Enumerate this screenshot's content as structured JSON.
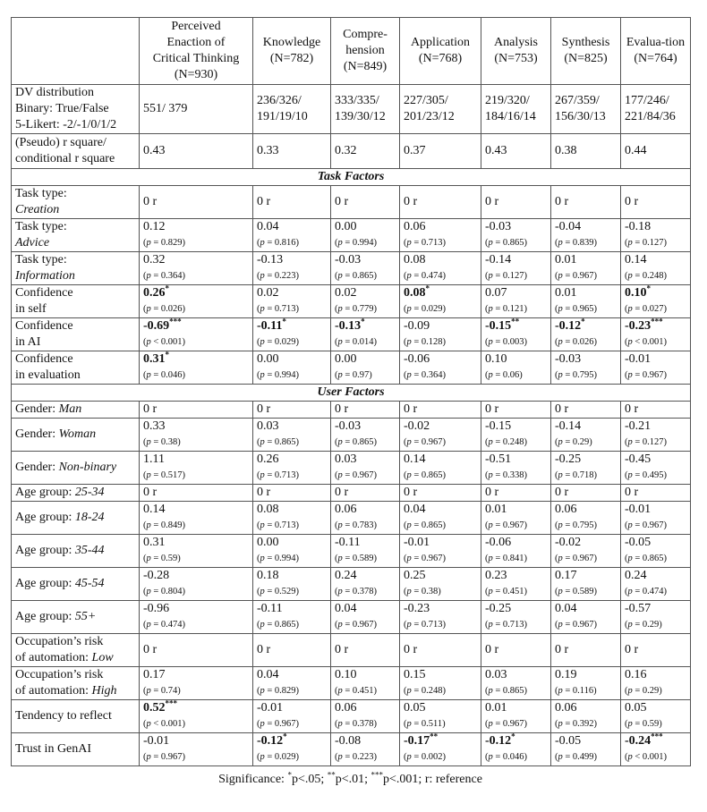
{
  "columns": [
    "",
    "Perceived Enaction of Critical Thinking (N=930)",
    "Knowledge (N=782)",
    "Compre-hension (N=849)",
    "Application (N=768)",
    "Analysis (N=753)",
    "Synthesis (N=825)",
    "Evalua-tion (N=764)"
  ],
  "dv_distribution": {
    "label": [
      "DV distribution",
      "Binary: True/False",
      "5-Likert: -2/-1/0/1/2"
    ],
    "values": [
      "551/ 379",
      "236/326/ 191/19/10",
      "333/335/ 139/30/12",
      "227/305/ 201/23/12",
      "219/320/ 184/16/14",
      "267/359/ 156/30/13",
      "177/246/ 221/84/36"
    ]
  },
  "r_square": {
    "label": [
      "(Pseudo) r square/",
      "conditional r square"
    ],
    "values": [
      "0.43",
      "0.33",
      "0.32",
      "0.37",
      "0.43",
      "0.38",
      "0.44"
    ]
  },
  "sections": [
    {
      "title": "Task Factors",
      "rows": [
        {
          "label": "Task type:",
          "em": "Creation",
          "break": true,
          "ref": true
        },
        {
          "label": "Task type:",
          "em": "Advice",
          "break": true,
          "cells": [
            [
              "0.12",
              "",
              "p = 0.829"
            ],
            [
              "0.04",
              "",
              "p = 0.816"
            ],
            [
              "0.00",
              "",
              "p = 0.994"
            ],
            [
              "0.06",
              "",
              "p = 0.713"
            ],
            [
              "-0.03",
              "",
              "p = 0.865"
            ],
            [
              "-0.04",
              "",
              "p = 0.839"
            ],
            [
              "-0.18",
              "",
              "p = 0.127"
            ]
          ]
        },
        {
          "label": "Task type:",
          "em": "Information",
          "break": true,
          "cells": [
            [
              "0.32",
              "",
              "p = 0.364"
            ],
            [
              "-0.13",
              "",
              "p = 0.223"
            ],
            [
              "-0.03",
              "",
              "p = 0.865"
            ],
            [
              "0.08",
              "",
              "p = 0.474"
            ],
            [
              "-0.14",
              "",
              "p = 0.127"
            ],
            [
              "0.01",
              "",
              "p = 0.967"
            ],
            [
              "0.14",
              "",
              "p = 0.248"
            ]
          ]
        },
        {
          "label": "Confidence",
          "label2": "in self",
          "cells": [
            [
              "0.26",
              "*",
              "p = 0.026"
            ],
            [
              "0.02",
              "",
              "p = 0.713"
            ],
            [
              "0.02",
              "",
              "p = 0.779"
            ],
            [
              "0.08",
              "*",
              "p = 0.029"
            ],
            [
              "0.07",
              "",
              "p = 0.121"
            ],
            [
              "0.01",
              "",
              "p = 0.965"
            ],
            [
              "0.10",
              "*",
              "p = 0.027"
            ]
          ]
        },
        {
          "label": "Confidence",
          "label2": "in AI",
          "cells": [
            [
              "-0.69",
              "***",
              "p < 0.001"
            ],
            [
              "-0.11",
              "*",
              "p = 0.029"
            ],
            [
              "-0.13",
              "*",
              "p = 0.014"
            ],
            [
              "-0.09",
              "",
              "p = 0.128"
            ],
            [
              "-0.15",
              "**",
              "p = 0.003"
            ],
            [
              "-0.12",
              "*",
              "p = 0.026"
            ],
            [
              "-0.23",
              "***",
              "p < 0.001"
            ]
          ]
        },
        {
          "label": "Confidence",
          "label2": "in evaluation",
          "cells": [
            [
              "0.31",
              "*",
              "p = 0.046"
            ],
            [
              "0.00",
              "",
              "p = 0.994"
            ],
            [
              "0.00",
              "",
              "p = 0.97"
            ],
            [
              "-0.06",
              "",
              "p = 0.364"
            ],
            [
              "0.10",
              "",
              "p = 0.06"
            ],
            [
              "-0.03",
              "",
              "p = 0.795"
            ],
            [
              "-0.01",
              "",
              "p = 0.967"
            ]
          ]
        }
      ]
    },
    {
      "title": "User Factors",
      "rows": [
        {
          "label": "Gender: ",
          "em": "Man",
          "ref": true,
          "short": true
        },
        {
          "label": "Gender: ",
          "em": "Woman",
          "cells": [
            [
              "0.33",
              "",
              "p = 0.38"
            ],
            [
              "0.03",
              "",
              "p = 0.865"
            ],
            [
              "-0.03",
              "",
              "p = 0.865"
            ],
            [
              "-0.02",
              "",
              "p = 0.967"
            ],
            [
              "-0.15",
              "",
              "p = 0.248"
            ],
            [
              "-0.14",
              "",
              "p = 0.29"
            ],
            [
              "-0.21",
              "",
              "p = 0.127"
            ]
          ]
        },
        {
          "label": "Gender: ",
          "em": "Non-binary",
          "cells": [
            [
              "1.11",
              "",
              "p = 0.517"
            ],
            [
              "0.26",
              "",
              "p = 0.713"
            ],
            [
              "0.03",
              "",
              "p = 0.967"
            ],
            [
              "0.14",
              "",
              "p = 0.865"
            ],
            [
              "-0.51",
              "",
              "p = 0.338"
            ],
            [
              "-0.25",
              "",
              "p = 0.718"
            ],
            [
              "-0.45",
              "",
              "p = 0.495"
            ]
          ]
        },
        {
          "label": "Age group: ",
          "em": "25-34",
          "ref": true,
          "short": true
        },
        {
          "label": "Age group: ",
          "em": "18-24",
          "cells": [
            [
              "0.14",
              "",
              "p = 0.849"
            ],
            [
              "0.08",
              "",
              "p = 0.713"
            ],
            [
              "0.06",
              "",
              "p = 0.783"
            ],
            [
              "0.04",
              "",
              "p = 0.865"
            ],
            [
              "0.01",
              "",
              "p = 0.967"
            ],
            [
              "0.06",
              "",
              "p = 0.795"
            ],
            [
              "-0.01",
              "",
              "p = 0.967"
            ]
          ]
        },
        {
          "label": "Age group: ",
          "em": "35-44",
          "cells": [
            [
              "0.31",
              "",
              "p = 0.59"
            ],
            [
              "0.00",
              "",
              "p = 0.994"
            ],
            [
              "-0.11",
              "",
              "p = 0.589"
            ],
            [
              "-0.01",
              "",
              "p = 0.967"
            ],
            [
              "-0.06",
              "",
              "p = 0.841"
            ],
            [
              "-0.02",
              "",
              "p = 0.967"
            ],
            [
              "-0.05",
              "",
              "p = 0.865"
            ]
          ]
        },
        {
          "label": "Age group: ",
          "em": "45-54",
          "cells": [
            [
              "-0.28",
              "",
              "p = 0.804"
            ],
            [
              "0.18",
              "",
              "p = 0.529"
            ],
            [
              "0.24",
              "",
              "p = 0.378"
            ],
            [
              "0.25",
              "",
              "p = 0.38"
            ],
            [
              "0.23",
              "",
              "p = 0.451"
            ],
            [
              "0.17",
              "",
              "p = 0.589"
            ],
            [
              "0.24",
              "",
              "p = 0.474"
            ]
          ]
        },
        {
          "label": "Age group: ",
          "em": "55+",
          "cells": [
            [
              "-0.96",
              "",
              "p = 0.474"
            ],
            [
              "-0.11",
              "",
              "p = 0.865"
            ],
            [
              "0.04",
              "",
              "p = 0.967"
            ],
            [
              "-0.23",
              "",
              "p = 0.713"
            ],
            [
              "-0.25",
              "",
              "p = 0.713"
            ],
            [
              "0.04",
              "",
              "p = 0.967"
            ],
            [
              "-0.57",
              "",
              "p = 0.29"
            ]
          ]
        },
        {
          "label": "Occupation’s risk",
          "label2": "of automation: ",
          "em": "Low",
          "ref": true
        },
        {
          "label": "Occupation’s risk",
          "label2": "of automation: ",
          "em": "High",
          "cells": [
            [
              "0.17",
              "",
              "p = 0.74"
            ],
            [
              "0.04",
              "",
              "p = 0.829"
            ],
            [
              "0.10",
              "",
              "p = 0.451"
            ],
            [
              "0.15",
              "",
              "p = 0.248"
            ],
            [
              "0.03",
              "",
              "p = 0.865"
            ],
            [
              "0.19",
              "",
              "p = 0.116"
            ],
            [
              "0.16",
              "",
              "p = 0.29"
            ]
          ]
        },
        {
          "label": "Tendency to reflect",
          "cells": [
            [
              "0.52",
              "***",
              "p < 0.001"
            ],
            [
              "-0.01",
              "",
              "p = 0.967"
            ],
            [
              "0.06",
              "",
              "p = 0.378"
            ],
            [
              "0.05",
              "",
              "p = 0.511"
            ],
            [
              "0.01",
              "",
              "p = 0.967"
            ],
            [
              "0.06",
              "",
              "p = 0.392"
            ],
            [
              "0.05",
              "",
              "p = 0.59"
            ]
          ]
        },
        {
          "label": "Trust in GenAI",
          "cells": [
            [
              "-0.01",
              "",
              "p = 0.967"
            ],
            [
              "-0.12",
              "*",
              "p = 0.029"
            ],
            [
              "-0.08",
              "",
              "p = 0.223"
            ],
            [
              "-0.17",
              "**",
              "p = 0.002"
            ],
            [
              "-0.12",
              "*",
              "p = 0.046"
            ],
            [
              "-0.05",
              "",
              "p = 0.499"
            ],
            [
              "-0.24",
              "***",
              "p < 0.001"
            ]
          ]
        }
      ]
    }
  ],
  "reference_value": "0 r",
  "caption": {
    "prefix": "Significance: ",
    "s1": "*",
    "t1": "p<.05; ",
    "s2": "**",
    "t2": "p<.01; ",
    "s3": "***",
    "t3": "p<.001; r: reference"
  }
}
